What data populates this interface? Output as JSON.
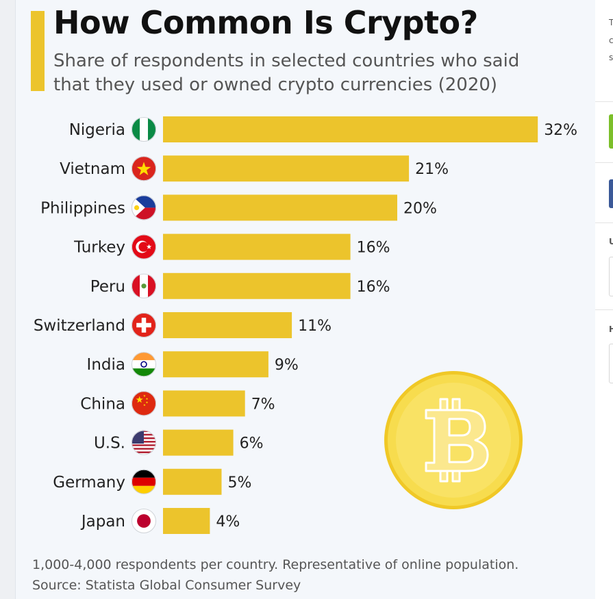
{
  "header": {
    "title": "How Common Is Crypto?",
    "subtitle": "Share of respondents in selected countries who said that they used or owned crypto currencies (2020)"
  },
  "footnote": {
    "line1": "1,000-4,000 respondents per country. Representative of online population.",
    "line2": "Source: Statista Global Consumer Survey"
  },
  "colors": {
    "bar": "#ecc42c",
    "accent": "#ecc42c",
    "coin": "#f2cf2f"
  },
  "decoration": {
    "icon": "bitcoin-coin-icon"
  },
  "chart_data": {
    "type": "bar",
    "orientation": "horizontal",
    "title": "How Common Is Crypto?",
    "subtitle": "Share of respondents in selected countries who said that they used or owned crypto currencies (2020)",
    "categories": [
      "Nigeria",
      "Vietnam",
      "Philippines",
      "Turkey",
      "Peru",
      "Switzerland",
      "India",
      "China",
      "U.S.",
      "Germany",
      "Japan"
    ],
    "values": [
      32,
      21,
      20,
      16,
      16,
      11,
      9,
      7,
      6,
      5,
      4
    ],
    "value_labels": [
      "32%",
      "21%",
      "20%",
      "16%",
      "16%",
      "11%",
      "9%",
      "7%",
      "6%",
      "5%",
      "4%"
    ],
    "unit": "%",
    "flag_icons": [
      "nigeria-flag-icon",
      "vietnam-flag-icon",
      "philippines-flag-icon",
      "turkey-flag-icon",
      "peru-flag-icon",
      "switzerland-flag-icon",
      "india-flag-icon",
      "china-flag-icon",
      "us-flag-icon",
      "germany-flag-icon",
      "japan-flag-icon"
    ],
    "xlim": [
      0,
      32
    ],
    "grid": false,
    "legend": "none"
  },
  "side_panel": {
    "texts": [
      "T",
      "c",
      "s",
      "U",
      "H"
    ]
  }
}
